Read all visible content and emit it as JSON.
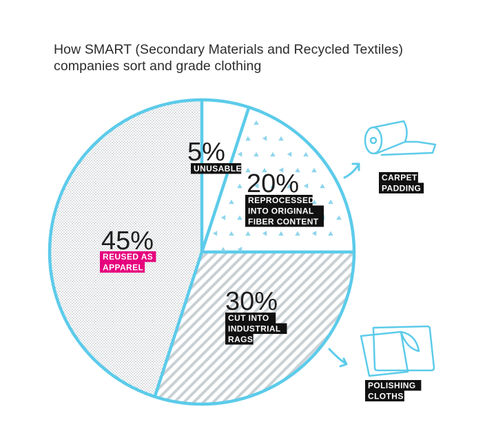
{
  "title_line1": "How SMART (Secondary Materials and Recycled Textiles)",
  "title_line2": "companies sort and grade clothing",
  "colors": {
    "outline": "#5ccbea",
    "label_bg": "#111111",
    "highlight_bg": "#e6007e",
    "label_text": "#ffffff",
    "texture": "#9aa3a8"
  },
  "chart_data": {
    "type": "pie",
    "slices": [
      {
        "value": 5,
        "pct_label": "5%",
        "label_lines": [
          "UNUSABLE"
        ],
        "fill": "plain"
      },
      {
        "value": 20,
        "pct_label": "20%",
        "label_lines": [
          "REPROCESSED",
          "INTO ORIGINAL",
          "FIBER CONTENT"
        ],
        "fill": "triangles"
      },
      {
        "value": 30,
        "pct_label": "30%",
        "label_lines": [
          "CUT INTO",
          "INDUSTRIAL",
          "RAGS"
        ],
        "fill": "stripes"
      },
      {
        "value": 45,
        "pct_label": "45%",
        "label_lines": [
          "REUSED AS",
          "APPAREL"
        ],
        "fill": "dots",
        "highlight": true
      }
    ],
    "outputs": [
      {
        "label_lines": [
          "CARPET",
          "PADDING"
        ],
        "icon": "carpet-roll-icon",
        "from_slice": 1
      },
      {
        "label_lines": [
          "POLISHING",
          "CLOTHS"
        ],
        "icon": "folded-cloth-icon",
        "from_slice": 2
      }
    ]
  }
}
